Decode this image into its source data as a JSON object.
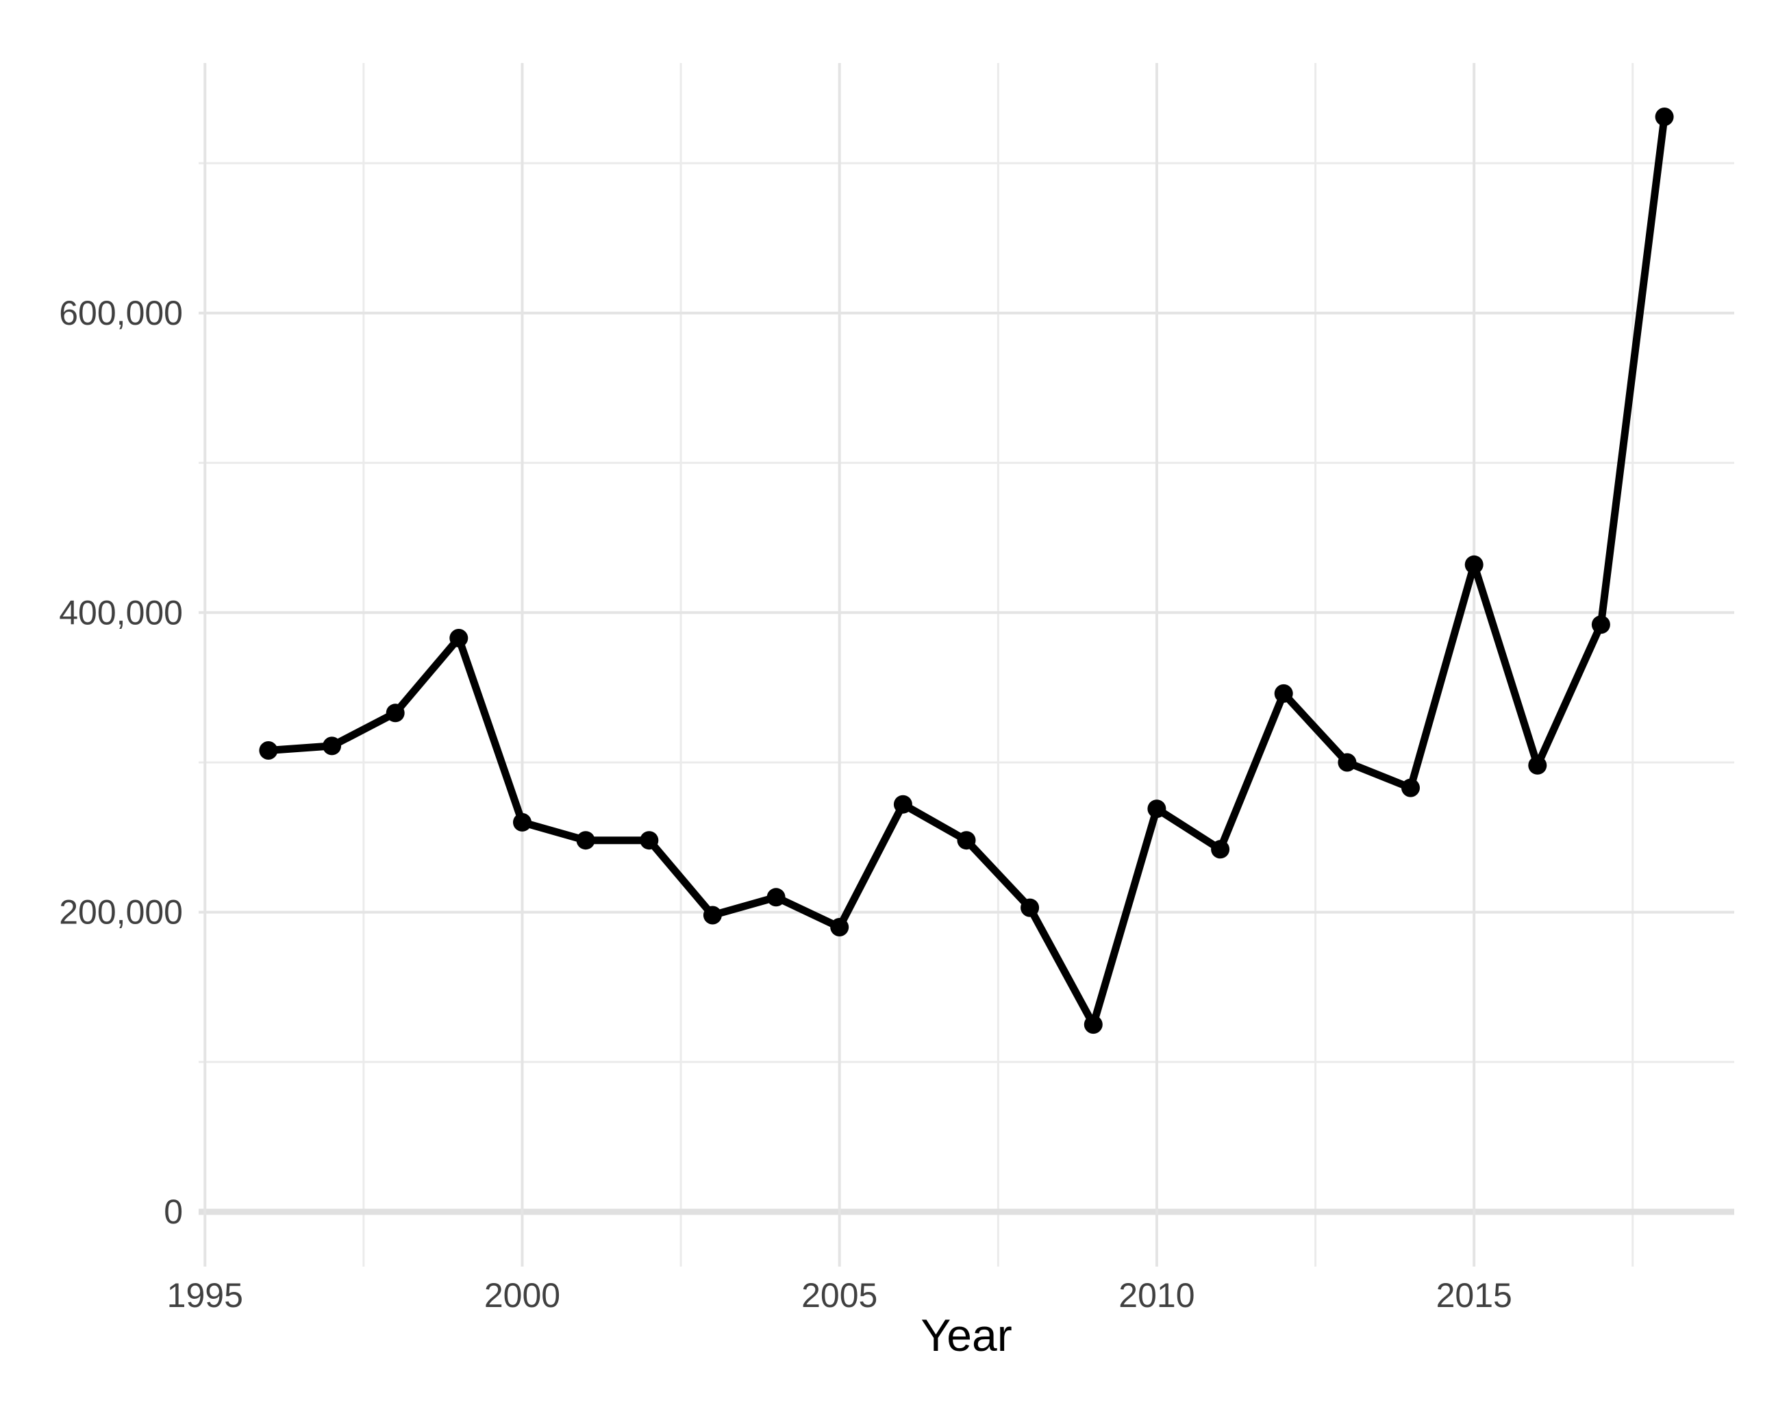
{
  "chart_data": {
    "type": "line",
    "title": "",
    "xlabel": "Year",
    "ylabel": "",
    "x": [
      1996,
      1997,
      1998,
      1999,
      2000,
      2001,
      2002,
      2003,
      2004,
      2005,
      2006,
      2007,
      2008,
      2009,
      2010,
      2011,
      2012,
      2013,
      2014,
      2015,
      2016,
      2017,
      2018
    ],
    "series": [
      {
        "name": "value",
        "values": [
          308000,
          311000,
          333000,
          383000,
          260000,
          248000,
          248000,
          198000,
          210000,
          190000,
          272000,
          248000,
          203000,
          125000,
          269000,
          242000,
          346000,
          300000,
          283000,
          432000,
          298000,
          392000,
          731000
        ]
      }
    ],
    "x_ticks": {
      "values": [
        1995,
        2000,
        2005,
        2010,
        2015
      ],
      "labels": [
        "1995",
        "2000",
        "2005",
        "2010",
        "2015"
      ]
    },
    "x_minor_ticks": [
      1997.5,
      2002.5,
      2007.5,
      2012.5,
      2017.5
    ],
    "y_ticks": {
      "values": [
        0,
        200000,
        400000,
        600000
      ],
      "labels": [
        "0",
        "200,000",
        "400,000",
        "600,000"
      ]
    },
    "y_minor_ticks": [
      100000,
      300000,
      500000,
      700000
    ],
    "x_range": [
      1994.9,
      2019.1
    ],
    "y_range": [
      -36600,
      766900
    ],
    "grid": true,
    "legend": false,
    "marker": "circle",
    "line_style": "solid",
    "colors": {
      "line": "#000000",
      "point": "#000000",
      "grid_major": "#e4e4e4",
      "grid_minor": "#ebebeb",
      "zero_line": "#e0e0e0",
      "tick_label": "#404040",
      "axis_title": "#000000",
      "background": "#ffffff"
    }
  }
}
